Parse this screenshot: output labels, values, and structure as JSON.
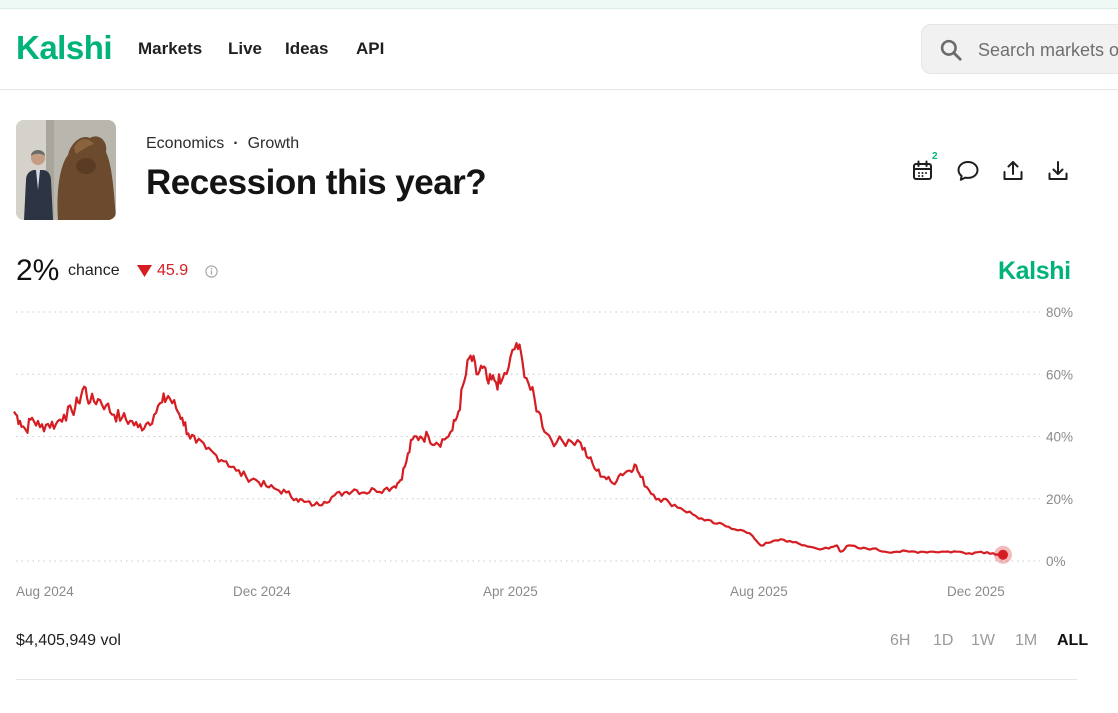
{
  "header": {
    "logo": "Kalshi",
    "nav": [
      {
        "label": "Markets"
      },
      {
        "label": "Live"
      },
      {
        "label": "Ideas"
      },
      {
        "label": "API"
      }
    ],
    "search_placeholder": "Search markets or profiles"
  },
  "market": {
    "category": "Economics",
    "separator": "·",
    "subcategory": "Growth",
    "title": "Recession this year?",
    "calendar_badge": "2",
    "actions": [
      "calendar-icon",
      "comment-icon",
      "share-icon",
      "download-icon"
    ]
  },
  "stats": {
    "probability": "2%",
    "probability_suffix": "chance",
    "change_value": "45.9",
    "change_direction": "down",
    "watermark": "Kalshi",
    "volume": "$4,405,949 vol"
  },
  "ranges": [
    {
      "label": "6H",
      "active": false
    },
    {
      "label": "1D",
      "active": false
    },
    {
      "label": "1W",
      "active": false
    },
    {
      "label": "1M",
      "active": false
    },
    {
      "label": "ALL",
      "active": true
    }
  ],
  "colors": {
    "brand": "#00b37a",
    "line": "#d51d22",
    "negative": "#d51d22"
  },
  "chart_data": {
    "type": "line",
    "series": [
      {
        "values": [
          [
            "2024-07-30",
            48
          ],
          [
            "2024-08-02",
            45
          ],
          [
            "2024-08-05",
            42
          ],
          [
            "2024-08-08",
            46
          ],
          [
            "2024-08-12",
            43
          ],
          [
            "2024-08-16",
            44
          ],
          [
            "2024-08-20",
            44
          ],
          [
            "2024-08-24",
            47
          ],
          [
            "2024-08-28",
            48
          ],
          [
            "2024-08-31",
            51
          ],
          [
            "2024-09-03",
            56
          ],
          [
            "2024-09-06",
            51
          ],
          [
            "2024-09-10",
            52
          ],
          [
            "2024-09-14",
            50
          ],
          [
            "2024-09-18",
            47
          ],
          [
            "2024-09-22",
            46
          ],
          [
            "2024-09-26",
            45
          ],
          [
            "2024-09-30",
            43
          ],
          [
            "2024-10-04",
            44
          ],
          [
            "2024-10-08",
            47
          ],
          [
            "2024-10-12",
            51
          ],
          [
            "2024-10-15",
            53
          ],
          [
            "2024-10-19",
            49
          ],
          [
            "2024-10-22",
            46
          ],
          [
            "2024-10-25",
            41
          ],
          [
            "2024-10-29",
            38
          ],
          [
            "2024-11-03",
            36
          ],
          [
            "2024-11-08",
            34
          ],
          [
            "2024-11-13",
            32
          ],
          [
            "2024-11-18",
            29
          ],
          [
            "2024-11-23",
            27
          ],
          [
            "2024-11-28",
            26
          ],
          [
            "2024-12-03",
            24
          ],
          [
            "2024-12-08",
            23
          ],
          [
            "2024-12-13",
            22
          ],
          [
            "2024-12-18",
            20
          ],
          [
            "2024-12-22",
            19
          ],
          [
            "2024-12-27",
            18
          ],
          [
            "2025-01-01",
            19
          ],
          [
            "2025-01-06",
            21
          ],
          [
            "2025-01-11",
            22
          ],
          [
            "2025-01-16",
            23
          ],
          [
            "2025-01-21",
            22
          ],
          [
            "2025-01-26",
            23
          ],
          [
            "2025-01-31",
            23
          ],
          [
            "2025-02-05",
            24
          ],
          [
            "2025-02-08",
            26
          ],
          [
            "2025-02-11",
            32
          ],
          [
            "2025-02-14",
            39
          ],
          [
            "2025-02-18",
            40
          ],
          [
            "2025-02-22",
            40
          ],
          [
            "2025-02-26",
            38
          ],
          [
            "2025-03-02",
            39
          ],
          [
            "2025-03-06",
            42
          ],
          [
            "2025-03-09",
            48
          ],
          [
            "2025-03-12",
            58
          ],
          [
            "2025-03-15",
            66
          ],
          [
            "2025-03-18",
            60
          ],
          [
            "2025-03-21",
            62
          ],
          [
            "2025-03-24",
            57
          ],
          [
            "2025-03-27",
            58
          ],
          [
            "2025-03-30",
            57
          ],
          [
            "2025-04-03",
            62
          ],
          [
            "2025-04-07",
            70
          ],
          [
            "2025-04-10",
            64
          ],
          [
            "2025-04-14",
            55
          ],
          [
            "2025-04-18",
            48
          ],
          [
            "2025-04-22",
            41
          ],
          [
            "2025-04-27",
            38
          ],
          [
            "2025-05-03",
            39
          ],
          [
            "2025-05-09",
            38
          ],
          [
            "2025-05-13",
            33
          ],
          [
            "2025-05-17",
            29
          ],
          [
            "2025-05-21",
            27
          ],
          [
            "2025-05-25",
            25
          ],
          [
            "2025-05-29",
            28
          ],
          [
            "2025-06-02",
            29
          ],
          [
            "2025-06-05",
            31
          ],
          [
            "2025-06-08",
            27
          ],
          [
            "2025-06-12",
            23
          ],
          [
            "2025-06-17",
            20
          ],
          [
            "2025-06-22",
            19
          ],
          [
            "2025-06-28",
            17
          ],
          [
            "2025-07-04",
            15
          ],
          [
            "2025-07-10",
            13
          ],
          [
            "2025-07-16",
            12
          ],
          [
            "2025-07-22",
            11
          ],
          [
            "2025-07-28",
            10
          ],
          [
            "2025-08-03",
            8
          ],
          [
            "2025-08-07",
            5
          ],
          [
            "2025-08-12",
            6
          ],
          [
            "2025-08-17",
            7
          ],
          [
            "2025-08-23",
            6
          ],
          [
            "2025-08-29",
            5
          ],
          [
            "2025-09-04",
            4
          ],
          [
            "2025-09-10",
            4
          ],
          [
            "2025-09-14",
            5
          ],
          [
            "2025-09-16",
            3
          ],
          [
            "2025-09-20",
            5
          ],
          [
            "2025-09-26",
            4
          ],
          [
            "2025-10-02",
            4
          ],
          [
            "2025-10-08",
            3
          ],
          [
            "2025-10-14",
            3
          ],
          [
            "2025-10-20",
            3
          ],
          [
            "2025-10-26",
            3
          ],
          [
            "2025-11-01",
            3
          ],
          [
            "2025-11-07",
            3
          ],
          [
            "2025-11-13",
            3
          ],
          [
            "2025-11-19",
            2.5
          ],
          [
            "2025-11-25",
            3
          ],
          [
            "2025-12-01",
            2.5
          ],
          [
            "2025-12-06",
            2
          ]
        ]
      }
    ],
    "x_ticks": [
      "Aug 2024",
      "Dec 2024",
      "Apr 2025",
      "Aug 2025",
      "Dec 2025"
    ],
    "y_ticks": [
      "80%",
      "60%",
      "40%",
      "20%",
      "0%"
    ],
    "ylim": [
      0,
      80
    ],
    "grid": true,
    "grid_style": "dotted",
    "y_axis_position": "right"
  }
}
